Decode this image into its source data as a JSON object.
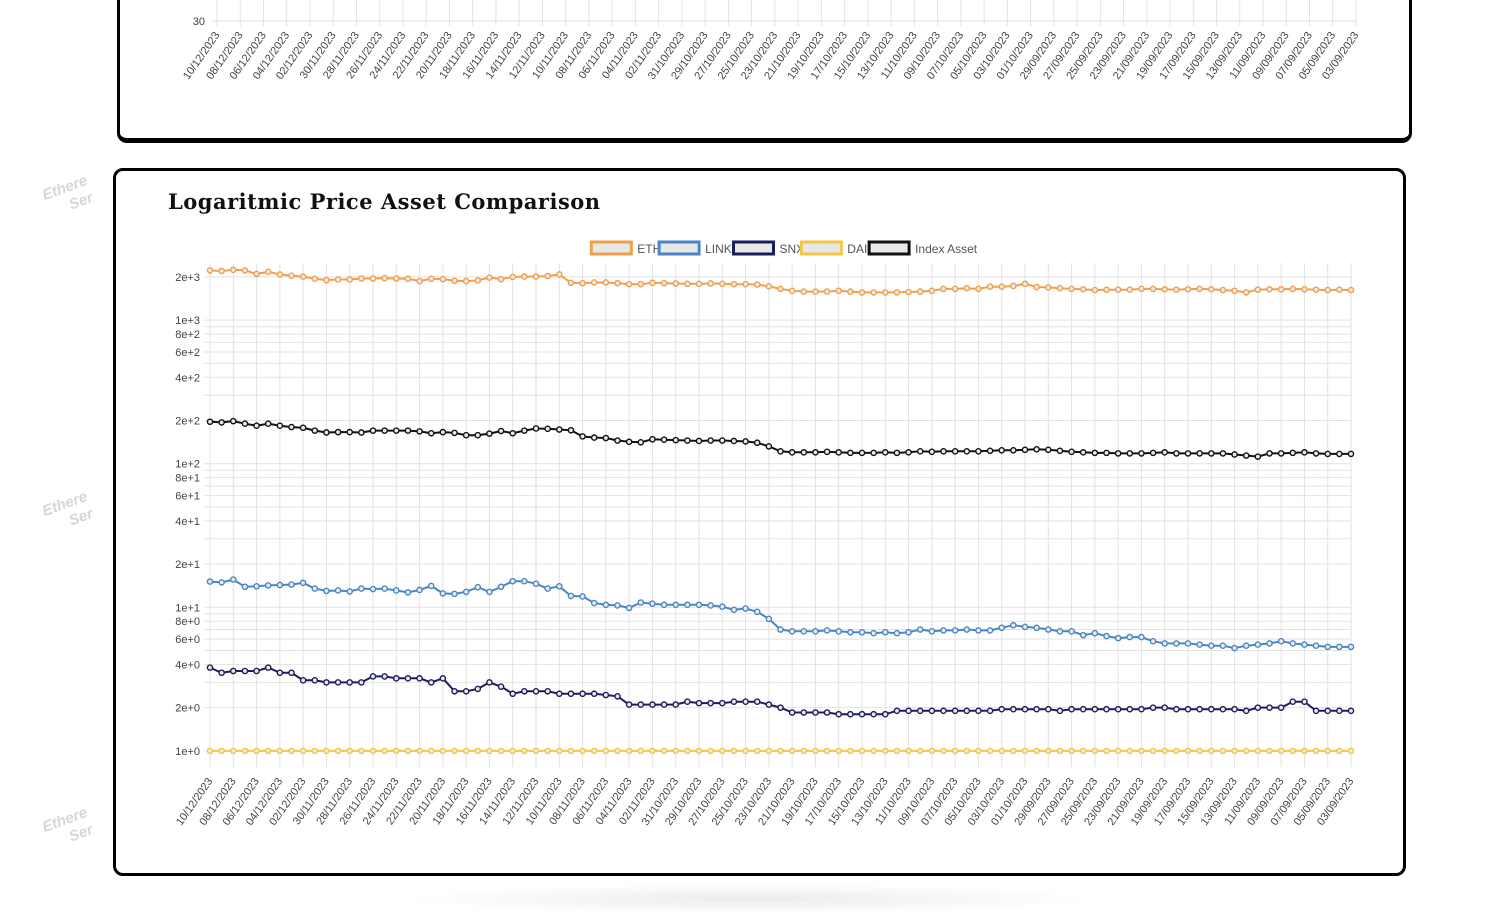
{
  "top_chart": {
    "y_tick_label": "30",
    "dates": [
      "10/12/2023",
      "08/12/2023",
      "06/12/2023",
      "04/12/2023",
      "02/12/2023",
      "30/11/2023",
      "28/11/2023",
      "26/11/2023",
      "24/11/2023",
      "22/11/2023",
      "20/11/2023",
      "18/11/2023",
      "16/11/2023",
      "14/11/2023",
      "12/11/2023",
      "10/11/2023",
      "08/11/2023",
      "06/11/2023",
      "04/11/2023",
      "02/11/2023",
      "31/10/2023",
      "29/10/2023",
      "27/10/2023",
      "25/10/2023",
      "23/10/2023",
      "21/10/2023",
      "19/10/2023",
      "17/10/2023",
      "15/10/2023",
      "13/10/2023",
      "11/10/2023",
      "09/10/2023",
      "07/10/2023",
      "05/10/2023",
      "03/10/2023",
      "01/10/2023",
      "29/09/2023",
      "27/09/2023",
      "25/09/2023",
      "23/09/2023",
      "21/09/2023",
      "19/09/2023",
      "17/09/2023",
      "15/09/2023",
      "13/09/2023",
      "11/09/2023",
      "09/09/2023",
      "07/09/2023",
      "05/09/2023",
      "03/09/2023"
    ]
  },
  "watermark": {
    "line1": "Ethere",
    "line2": "Ser"
  },
  "chart_data": {
    "type": "line",
    "title": "Logaritmic Price Asset Comparison",
    "y_scale": "log",
    "ylim": [
      0.85,
      2500
    ],
    "y_ticks": [
      {
        "value": 2000,
        "label": "2e+3"
      },
      {
        "value": 1000,
        "label": "1e+3"
      },
      {
        "value": 800,
        "label": "8e+2"
      },
      {
        "value": 600,
        "label": "6e+2"
      },
      {
        "value": 400,
        "label": "4e+2"
      },
      {
        "value": 200,
        "label": "2e+2"
      },
      {
        "value": 100,
        "label": "1e+2"
      },
      {
        "value": 80,
        "label": "8e+1"
      },
      {
        "value": 60,
        "label": "6e+1"
      },
      {
        "value": 40,
        "label": "4e+1"
      },
      {
        "value": 20,
        "label": "2e+1"
      },
      {
        "value": 10,
        "label": "1e+1"
      },
      {
        "value": 8,
        "label": "8e+0"
      },
      {
        "value": 6,
        "label": "6e+0"
      },
      {
        "value": 4,
        "label": "4e+0"
      },
      {
        "value": 2,
        "label": "2e+0"
      },
      {
        "value": 1,
        "label": "1e+0"
      }
    ],
    "grid": true,
    "legend_position": "top-center",
    "x_label_dates": [
      "10/12/2023",
      "08/12/2023",
      "06/12/2023",
      "04/12/2023",
      "02/12/2023",
      "30/11/2023",
      "28/11/2023",
      "26/11/2023",
      "24/11/2023",
      "22/11/2023",
      "20/11/2023",
      "18/11/2023",
      "16/11/2023",
      "14/11/2023",
      "12/11/2023",
      "10/11/2023",
      "08/11/2023",
      "06/11/2023",
      "04/11/2023",
      "02/11/2023",
      "31/10/2023",
      "29/10/2023",
      "27/10/2023",
      "25/10/2023",
      "23/10/2023",
      "21/10/2023",
      "19/10/2023",
      "17/10/2023",
      "15/10/2023",
      "13/10/2023",
      "11/10/2023",
      "09/10/2023",
      "07/10/2023",
      "05/10/2023",
      "03/10/2023",
      "01/10/2023",
      "29/09/2023",
      "27/09/2023",
      "25/09/2023",
      "23/09/2023",
      "21/09/2023",
      "19/09/2023",
      "17/09/2023",
      "15/09/2023",
      "13/09/2023",
      "11/09/2023",
      "09/09/2023",
      "07/09/2023",
      "05/09/2023",
      "03/09/2023"
    ],
    "series": [
      {
        "name": "ETH",
        "color": "#f0a04b",
        "values": [
          2220,
          2200,
          2240,
          2220,
          2100,
          2170,
          2080,
          2040,
          2010,
          1940,
          1900,
          1920,
          1920,
          1950,
          1950,
          1960,
          1950,
          1940,
          1870,
          1940,
          1930,
          1880,
          1870,
          1890,
          1980,
          1930,
          2000,
          2010,
          2010,
          2030,
          2080,
          1820,
          1810,
          1830,
          1830,
          1810,
          1780,
          1780,
          1820,
          1810,
          1800,
          1790,
          1790,
          1800,
          1790,
          1780,
          1780,
          1770,
          1720,
          1650,
          1600,
          1580,
          1580,
          1580,
          1600,
          1580,
          1560,
          1560,
          1560,
          1560,
          1570,
          1580,
          1600,
          1650,
          1650,
          1670,
          1650,
          1710,
          1710,
          1730,
          1790,
          1700,
          1690,
          1670,
          1650,
          1640,
          1620,
          1630,
          1630,
          1630,
          1650,
          1650,
          1640,
          1630,
          1640,
          1650,
          1640,
          1620,
          1600,
          1560,
          1630,
          1640,
          1640,
          1650,
          1640,
          1630,
          1620,
          1630,
          1620
        ]
      },
      {
        "name": "LINK",
        "color": "#4a86c6",
        "values": [
          15.1,
          14.9,
          15.6,
          13.9,
          14.0,
          14.2,
          14.3,
          14.4,
          14.8,
          13.5,
          13.0,
          13.1,
          12.9,
          13.5,
          13.4,
          13.5,
          13.1,
          12.7,
          13.2,
          14.1,
          12.5,
          12.4,
          12.8,
          13.8,
          12.8,
          13.9,
          15.2,
          15.2,
          14.6,
          13.5,
          14.0,
          12.0,
          11.9,
          10.7,
          10.4,
          10.3,
          9.9,
          10.8,
          10.6,
          10.4,
          10.4,
          10.4,
          10.4,
          10.3,
          10.1,
          9.6,
          9.8,
          9.3,
          8.3,
          7.0,
          6.8,
          6.8,
          6.8,
          6.9,
          6.8,
          6.7,
          6.7,
          6.6,
          6.7,
          6.6,
          6.7,
          7.0,
          6.8,
          6.9,
          6.9,
          7.0,
          6.9,
          6.9,
          7.2,
          7.5,
          7.3,
          7.2,
          7.0,
          6.8,
          6.8,
          6.4,
          6.6,
          6.3,
          6.1,
          6.2,
          6.2,
          5.8,
          5.6,
          5.6,
          5.6,
          5.5,
          5.4,
          5.4,
          5.2,
          5.4,
          5.5,
          5.6,
          5.8,
          5.6,
          5.5,
          5.4,
          5.3,
          5.3,
          5.3
        ]
      },
      {
        "name": "SNX",
        "color": "#1c1d5c",
        "values": [
          3.8,
          3.5,
          3.6,
          3.6,
          3.6,
          3.8,
          3.5,
          3.5,
          3.1,
          3.1,
          3.0,
          3.0,
          3.0,
          3.0,
          3.3,
          3.3,
          3.2,
          3.2,
          3.2,
          3.0,
          3.2,
          2.6,
          2.6,
          2.7,
          3.0,
          2.8,
          2.5,
          2.6,
          2.6,
          2.6,
          2.5,
          2.5,
          2.5,
          2.5,
          2.45,
          2.4,
          2.1,
          2.1,
          2.1,
          2.1,
          2.1,
          2.2,
          2.15,
          2.15,
          2.15,
          2.2,
          2.2,
          2.2,
          2.1,
          2.0,
          1.85,
          1.85,
          1.85,
          1.85,
          1.8,
          1.8,
          1.8,
          1.8,
          1.8,
          1.9,
          1.9,
          1.9,
          1.9,
          1.9,
          1.9,
          1.9,
          1.9,
          1.9,
          1.95,
          1.95,
          1.95,
          1.95,
          1.95,
          1.9,
          1.95,
          1.95,
          1.95,
          1.95,
          1.95,
          1.95,
          1.95,
          2.0,
          2.0,
          1.95,
          1.95,
          1.95,
          1.95,
          1.95,
          1.95,
          1.9,
          2.0,
          2.0,
          2.0,
          2.2,
          2.2,
          1.9,
          1.9,
          1.9,
          1.9
        ]
      },
      {
        "name": "DAI",
        "color": "#f2c744",
        "values": [
          1.0,
          1.0,
          1.0,
          1.0,
          1.0,
          1.0,
          1.0,
          1.0,
          1.0,
          1.0,
          1.0,
          1.0,
          1.0,
          1.0,
          1.0,
          1.0,
          1.0,
          1.0,
          1.0,
          1.0,
          1.0,
          1.0,
          1.0,
          1.0,
          1.0,
          1.0,
          1.0,
          1.0,
          1.0,
          1.0,
          1.0,
          1.0,
          1.0,
          1.0,
          1.0,
          1.0,
          1.0,
          1.0,
          1.0,
          1.0,
          1.0,
          1.0,
          1.0,
          1.0,
          1.0,
          1.0,
          1.0,
          1.0,
          1.0,
          1.0,
          1.0,
          1.0,
          1.0,
          1.0,
          1.0,
          1.0,
          1.0,
          1.0,
          1.0,
          1.0,
          1.0,
          1.0,
          1.0,
          1.0,
          1.0,
          1.0,
          1.0,
          1.0,
          1.0,
          1.0,
          1.0,
          1.0,
          1.0,
          1.0,
          1.0,
          1.0,
          1.0,
          1.0,
          1.0,
          1.0,
          1.0,
          1.0,
          1.0,
          1.0,
          1.0,
          1.0,
          1.0,
          1.0,
          1.0,
          1.0,
          1.0,
          1.0,
          1.0,
          1.0,
          1.0,
          1.0,
          1.0,
          1.0,
          1.0
        ]
      },
      {
        "name": "Index Asset",
        "color": "#111111",
        "values": [
          196,
          194,
          198,
          190,
          184,
          190,
          184,
          180,
          178,
          170,
          165,
          166,
          166,
          165,
          170,
          170,
          170,
          170,
          168,
          163,
          166,
          164,
          158,
          158,
          162,
          169,
          163,
          170,
          176,
          175,
          173,
          171,
          155,
          152,
          151,
          145,
          142,
          141,
          148,
          147,
          146,
          145,
          144,
          145,
          145,
          144,
          143,
          140,
          132,
          122,
          120,
          120,
          120,
          121,
          120,
          119,
          119,
          119,
          120,
          119,
          120,
          122,
          121,
          122,
          122,
          122,
          122,
          123,
          124,
          124,
          125,
          126,
          125,
          123,
          121,
          120,
          119,
          119,
          118,
          118,
          118,
          119,
          120,
          118,
          118,
          118,
          118,
          118,
          116,
          114,
          112,
          118,
          118,
          119,
          120,
          118,
          117,
          117,
          117
        ]
      }
    ]
  }
}
